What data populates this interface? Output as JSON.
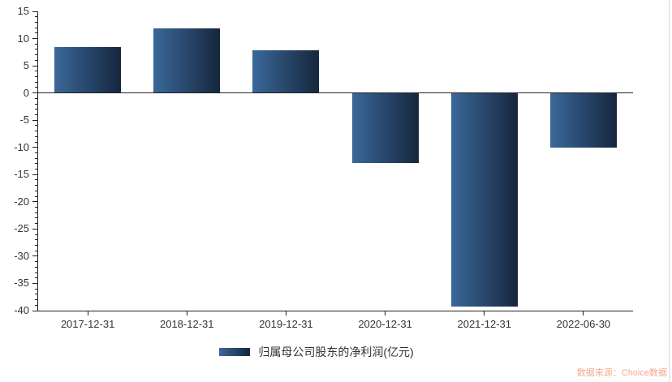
{
  "page": {
    "background": "#ffffff"
  },
  "legend": {
    "label": "归属母公司股东的净利润(亿元)"
  },
  "watermark": {
    "text": "数据来源：Choice数据",
    "color": "#f6a792"
  },
  "colors": {
    "bar_gradient_left": "#3a6899",
    "bar_gradient_right": "#16263e",
    "axis_line": "#222222",
    "axis_text": "#333333",
    "watermark_text": "#f6a792",
    "page_edge": "#e9e9e9"
  },
  "chart_data": {
    "type": "bar",
    "title": "",
    "xlabel": "",
    "ylabel": "",
    "categories": [
      "2017-12-31",
      "2018-12-31",
      "2019-12-31",
      "2020-12-31",
      "2021-12-31",
      "2022-06-30"
    ],
    "series": [
      {
        "name": "归属母公司股东的净利润(亿元)",
        "values": [
          8.5,
          11.9,
          7.9,
          -12.8,
          -39.2,
          -10.0
        ]
      }
    ],
    "ylim": [
      -40,
      15
    ],
    "y_ticks": [
      15,
      10,
      5,
      0,
      -5,
      -10,
      -15,
      -20,
      -25,
      -30,
      -35,
      -40
    ],
    "y_minor_step": 1,
    "y_tick_step": 5,
    "grid": false,
    "legend_position": "bottom-center",
    "zero_baseline": true,
    "source_note": "数据来源：Choice数据"
  }
}
